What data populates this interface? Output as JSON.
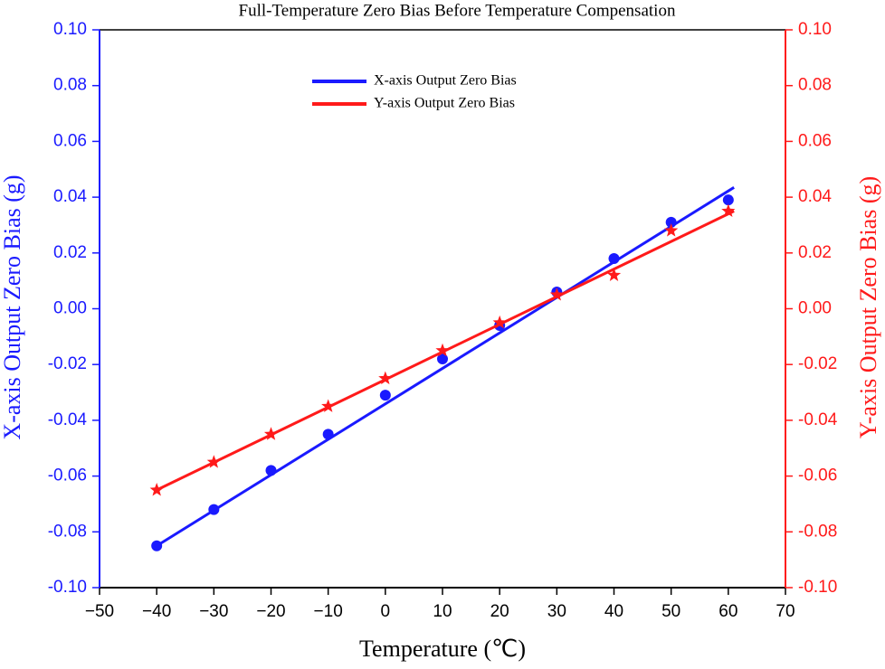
{
  "chart_data": {
    "type": "scatter",
    "title": "Full-Temperature Zero Bias Before Temperature Compensation",
    "x_label": "Temperature (℃)",
    "y_label": "X-axis Output Zero Bias (g)",
    "y2_label": "Y-axis Output Zero Bias (g)",
    "x": [
      -40,
      -30,
      -20,
      -10,
      0,
      10,
      20,
      30,
      40,
      50,
      60
    ],
    "xlim": [
      -50,
      70
    ],
    "xticks": [
      {
        "value": -50,
        "label": "−50"
      },
      {
        "value": -40,
        "label": "−40"
      },
      {
        "value": -30,
        "label": "−30"
      },
      {
        "value": -20,
        "label": "−20"
      },
      {
        "value": -10,
        "label": "−10"
      },
      0,
      10,
      20,
      30,
      40,
      50,
      60,
      70
    ],
    "ylim": [
      -0.1,
      0.1
    ],
    "yticks": [
      {
        "value": 0.1,
        "label": "0.10"
      },
      {
        "value": 0.08,
        "label": "0.08"
      },
      {
        "value": 0.06,
        "label": "0.06"
      },
      {
        "value": 0.04,
        "label": "0.04"
      },
      {
        "value": 0.02,
        "label": "0.02"
      },
      {
        "value": 0,
        "label": "0.00"
      },
      {
        "value": -0.02,
        "label": "-0.02"
      },
      {
        "value": -0.04,
        "label": "-0.04"
      },
      {
        "value": -0.06,
        "label": "-0.06"
      },
      {
        "value": -0.08,
        "label": "-0.08"
      },
      {
        "value": -0.1,
        "label": "-0.10"
      }
    ],
    "y2lim": [
      -0.1,
      0.1
    ],
    "y2ticks": [
      {
        "value": 0.1,
        "label": "0.10"
      },
      {
        "value": 0.08,
        "label": "0.08"
      },
      {
        "value": 0.06,
        "label": "0.06"
      },
      {
        "value": 0.04,
        "label": "0.04"
      },
      {
        "value": 0.02,
        "label": "0.02"
      },
      {
        "value": 0,
        "label": "0.00"
      },
      {
        "value": -0.02,
        "label": "-0.02"
      },
      {
        "value": -0.04,
        "label": "-0.04"
      },
      {
        "value": -0.06,
        "label": "-0.06"
      },
      {
        "value": -0.08,
        "label": "-0.08"
      },
      {
        "value": -0.1,
        "label": "-0.10"
      }
    ],
    "y_color": "#1a1aff",
    "y2_color": "#ff1a1a",
    "legend": "upper center",
    "series": [
      {
        "name": "X-axis Output Zero Bias",
        "color": "#1a1aff",
        "axis": "y",
        "marker": "circle",
        "values": [
          -0.085,
          -0.072,
          -0.058,
          -0.045,
          -0.031,
          -0.018,
          -0.006,
          0.006,
          0.018,
          0.031,
          0.039
        ],
        "fit": {
          "x": [
            -40,
            61
          ],
          "values": [
            -0.085,
            0.0435
          ]
        }
      },
      {
        "name": "Y-axis Output Zero Bias",
        "color": "#ff1a1a",
        "axis": "y2",
        "marker": "star",
        "values": [
          -0.065,
          -0.055,
          -0.045,
          -0.035,
          -0.025,
          -0.015,
          -0.005,
          0.005,
          0.012,
          0.028,
          0.035
        ],
        "fit": {
          "x": [
            -40,
            61
          ],
          "values": [
            -0.065,
            0.035
          ]
        }
      }
    ]
  }
}
